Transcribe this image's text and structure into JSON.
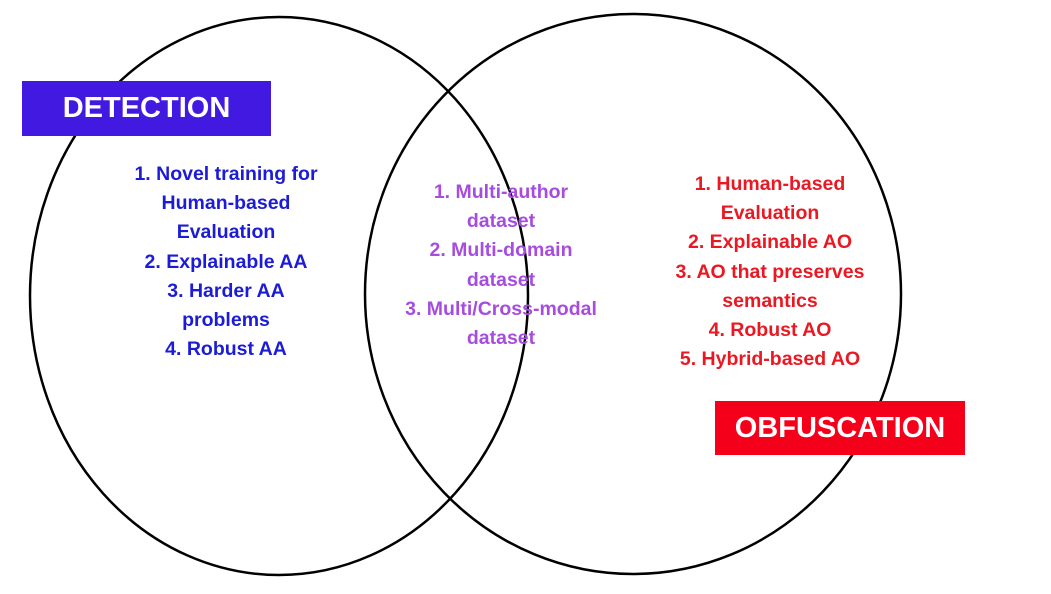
{
  "colors": {
    "detection_box": "#4219e0",
    "obfuscation_box": "#f5001b",
    "detection_text": "#1c1cd6",
    "shared_text": "#a64ddf",
    "obfuscation_text": "#ea1822",
    "circle_stroke": "#000000"
  },
  "labels": {
    "detection": "DETECTION",
    "obfuscation": "OBFUSCATION"
  },
  "detection_items": [
    "1. Novel training for",
    "Human-based",
    "Evaluation",
    "2. Explainable AA",
    "3. Harder AA",
    "problems",
    "4. Robust AA"
  ],
  "shared_items": [
    "1. Multi-author",
    "dataset",
    "2. Multi-domain",
    "dataset",
    "3. Multi/Cross-modal",
    "dataset"
  ],
  "obfuscation_items": [
    "1. Human-based",
    "Evaluation",
    "2. Explainable AO",
    "3. AO that preserves",
    "semantics",
    "4. Robust AO",
    "5. Hybrid-based AO"
  ]
}
